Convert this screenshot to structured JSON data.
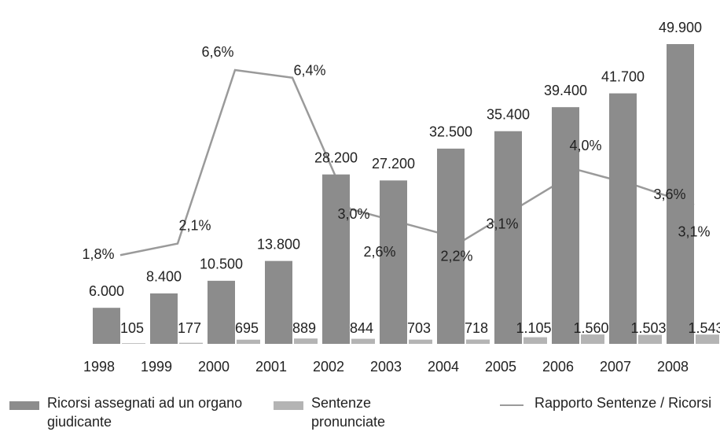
{
  "chart_data": {
    "type": "bar-line",
    "categories": [
      "1998",
      "1999",
      "2000",
      "2001",
      "2002",
      "2003",
      "2004",
      "2005",
      "2006",
      "2007",
      "2008"
    ],
    "series": [
      {
        "name": "Ricorsi assegnati ad un organo giudicante",
        "type": "bar",
        "color": "#8c8c8c",
        "values": [
          6000,
          8400,
          10500,
          13800,
          28200,
          27200,
          32500,
          35400,
          39400,
          41700,
          49900
        ],
        "value_labels": [
          "6.000",
          "8.400",
          "10.500",
          "13.800",
          "28.200",
          "27.200",
          "32.500",
          "35.400",
          "39.400",
          "41.700",
          "49.900"
        ]
      },
      {
        "name": "Sentenze pronunciate",
        "type": "bar",
        "color": "#b4b4b4",
        "values": [
          105,
          177,
          695,
          889,
          844,
          703,
          718,
          1105,
          1560,
          1503,
          1543
        ],
        "value_labels": [
          "105",
          "177",
          "695",
          "889",
          "844",
          "703",
          "718",
          "1.105",
          "1.560",
          "1.503",
          "1.543"
        ]
      },
      {
        "name": "Rapporto Sentenze / Ricorsi",
        "type": "line",
        "axis": "y2",
        "color": "#9a9a9a",
        "values": [
          1.8,
          2.1,
          6.6,
          6.4,
          3.0,
          2.6,
          2.2,
          3.1,
          4.0,
          3.6,
          3.1
        ],
        "value_labels": [
          "1,8%",
          "2,1%",
          "6,6%",
          "6,4%",
          "3,0%",
          "2,6%",
          "2,2%",
          "3,1%",
          "4,0%",
          "3,6%",
          "3,1%"
        ]
      }
    ],
    "ylim": [
      0,
      52000
    ],
    "y2lim": [
      -0.5,
      7.6
    ],
    "legend": "bottom"
  }
}
